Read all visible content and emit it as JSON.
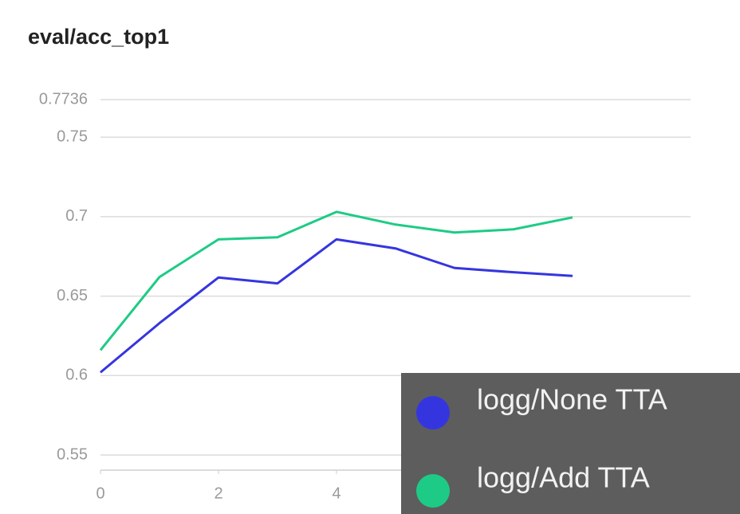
{
  "chart_data": {
    "type": "line",
    "title": "eval/acc_top1",
    "x": [
      0,
      1,
      2,
      3,
      4,
      5,
      6,
      7,
      8
    ],
    "series": [
      {
        "name": "logg/None TTA",
        "color": "#3535e0",
        "values": [
          0.602,
          0.633,
          0.6617,
          0.658,
          0.6857,
          0.68,
          0.6677,
          0.665,
          0.6627
        ]
      },
      {
        "name": "logg/Add TTA",
        "color": "#1ecb86",
        "values": [
          0.616,
          0.662,
          0.6857,
          0.687,
          0.703,
          0.695,
          0.69,
          0.692,
          0.6995
        ]
      }
    ],
    "xlim": [
      0,
      10
    ],
    "xticks": [
      0,
      2,
      4
    ],
    "ylim": [
      0.5405,
      0.7736
    ],
    "yticks": [
      0.55,
      0.6,
      0.65,
      0.7,
      0.75,
      0.7736
    ],
    "grid": true,
    "legend": "lower right"
  }
}
